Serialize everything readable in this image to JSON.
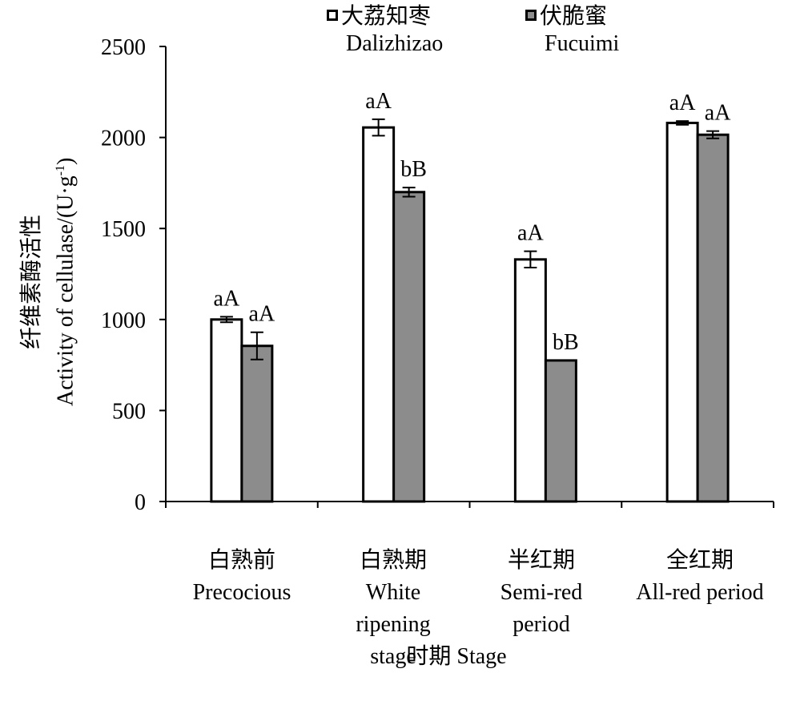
{
  "legend": [
    {
      "zh": "大荔知枣",
      "en": "Dalizhizao",
      "color": "#ffffff"
    },
    {
      "zh": "伏脆蜜",
      "en": "Fucuimi",
      "color": "#8c8c8c"
    }
  ],
  "axis": {
    "ylabel_zh": "纤维素酶活性",
    "ylabel_en": "Activity of cellulase/(U·g",
    "ylabel_sup": "-1",
    "ylabel_close": ")",
    "xtitle": "时期 Stage",
    "yticks": [
      "0",
      "500",
      "1000",
      "1500",
      "2000",
      "2500"
    ]
  },
  "categories": [
    {
      "zh": "白熟前",
      "en": "Precocious"
    },
    {
      "zh": "白熟期",
      "en": "White\nripening\nstage"
    },
    {
      "zh": "半红期",
      "en": "Semi-red\nperiod"
    },
    {
      "zh": "全红期",
      "en": "All-red period"
    }
  ],
  "chart_data": {
    "type": "bar",
    "categories": [
      "白熟前 Precocious",
      "白熟期 White ripening stage",
      "半红期 Semi-red period",
      "全红期 All-red period"
    ],
    "series": [
      {
        "name": "大荔知枣 Dalizhizao",
        "values": [
          1000,
          2055,
          1330,
          2080
        ],
        "errors": [
          15,
          45,
          45,
          10
        ],
        "labels": [
          "aA",
          "aA",
          "aA",
          "aA"
        ],
        "color": "#ffffff"
      },
      {
        "name": "伏脆蜜 Fucuimi",
        "values": [
          855,
          1700,
          775,
          2015
        ],
        "errors": [
          75,
          25,
          0,
          20
        ],
        "labels": [
          "aA",
          "bB",
          "bB",
          "aA"
        ],
        "color": "#8c8c8c"
      }
    ],
    "ylim": [
      0,
      2500
    ],
    "yticks": [
      0,
      500,
      1000,
      1500,
      2000,
      2500
    ],
    "xlabel": "时期 Stage",
    "ylabel": "纤维素酶活性 Activity of cellulase/(U·g-1)",
    "legend_position": "top"
  }
}
